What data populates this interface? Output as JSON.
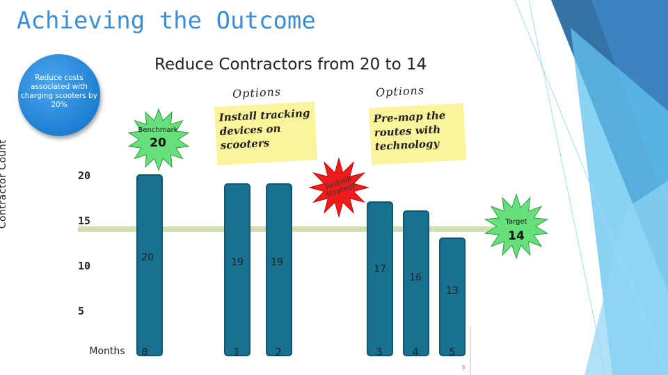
{
  "slide": {
    "title": "Achieving the Outcome",
    "page_number": "9"
  },
  "goal": {
    "text": "Reduce costs associated with charging scooters by 20%"
  },
  "options": {
    "label_1": "Options",
    "label_2": "Options",
    "note_1": "Install tracking devices on scooters",
    "note_2": "Pre-map the routes with technology"
  },
  "callouts": {
    "benchmark_label": "Benchmark",
    "benchmark_value": "20",
    "target_label": "Target",
    "target_value": "14",
    "rethink_text": "Rethink Strategy"
  },
  "colors": {
    "bar": "#17718f",
    "bar_edge": "#0f5670",
    "target_line": "#d2dfb0",
    "title_blue": "#3a8fd4",
    "starburst_green": "#66e07a",
    "starburst_red": "#ef1c1c",
    "note_yellow": "#fcf49a",
    "deco_light": "#63c3ee",
    "deco_dark": "#2a6aa0"
  },
  "chart_data": {
    "type": "bar",
    "title": "Reduce Contractors from 20 to 14",
    "ylabel": "Contractor Count",
    "xlabel": "Months",
    "y_ticks": [
      "5",
      "10",
      "15",
      "20"
    ],
    "categories": [
      "0",
      "1",
      "2",
      "3",
      "4",
      "5"
    ],
    "values": [
      20,
      19,
      19,
      17,
      16,
      13
    ],
    "data_labels": [
      "20",
      "19",
      "19",
      "17",
      "16",
      "13"
    ],
    "target_value": 14
  }
}
